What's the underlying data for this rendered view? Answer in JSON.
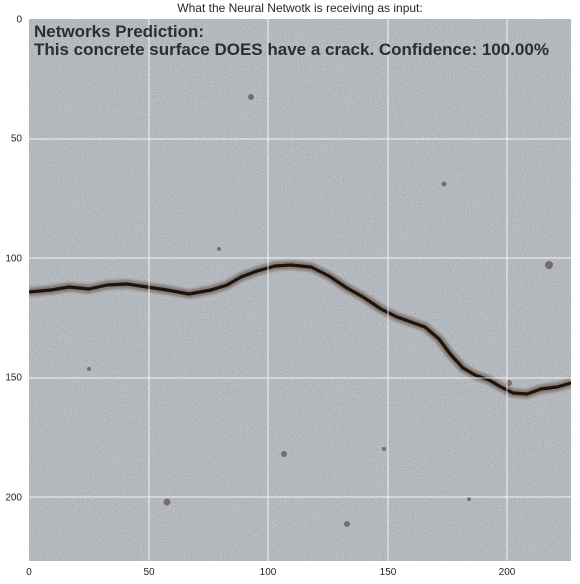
{
  "figure": {
    "title": "What the Neural Netwotk is receiving as input:"
  },
  "prediction": {
    "heading": "Networks Prediction:",
    "result": "This concrete surface DOES have a crack. Confidence: 100.00%"
  },
  "axes": {
    "x_ticks": [
      "0",
      "50",
      "100",
      "150",
      "200"
    ],
    "y_ticks": [
      "0",
      "50",
      "100",
      "150",
      "200"
    ],
    "x_range": [
      0,
      227
    ],
    "y_range": [
      0,
      227
    ],
    "grid": true
  },
  "image": {
    "subject": "concrete-surface-crack",
    "surface_color": "#9aa1a8",
    "crack_color": "#1e140c",
    "grid_color": "#ffffff"
  }
}
